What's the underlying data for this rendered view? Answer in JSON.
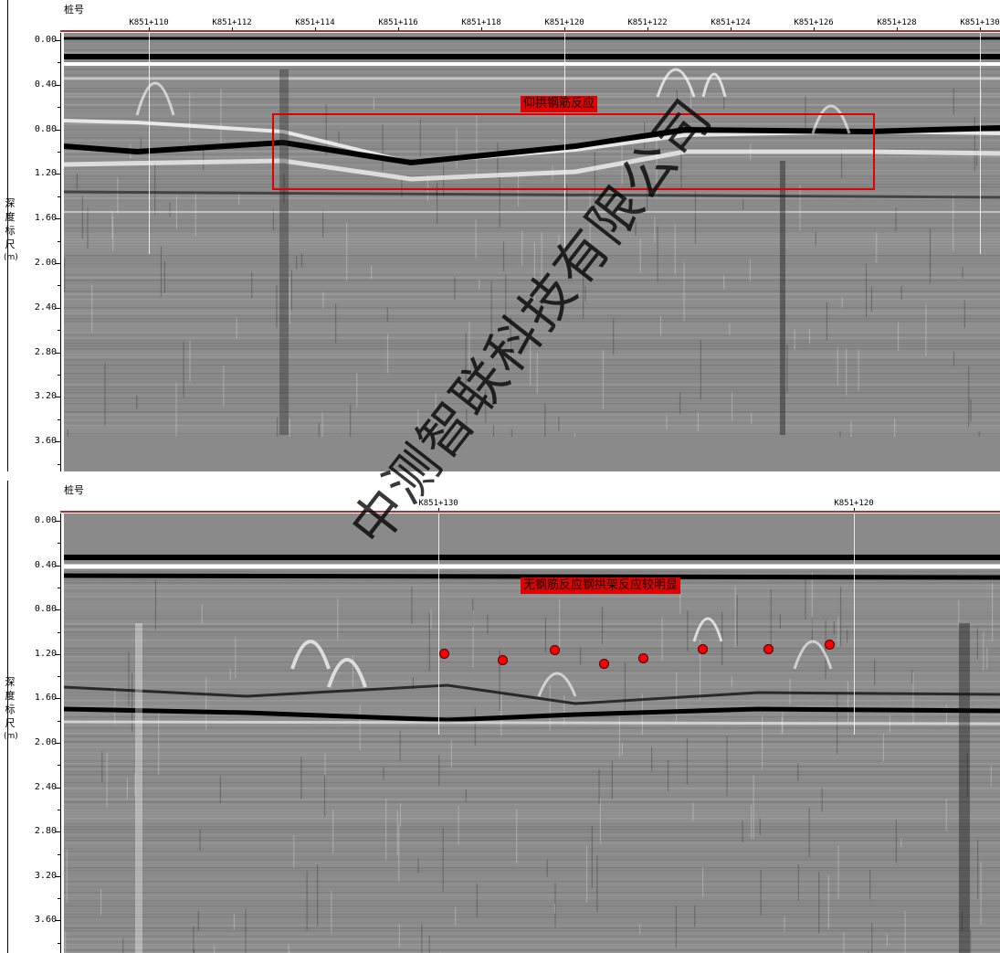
{
  "top_panel": {
    "header_title": "桩号",
    "axis_title_chars": [
      "深",
      "度",
      "标",
      "尺",
      "(m)"
    ],
    "depth_ticks": [
      "0.00",
      "0.40",
      "0.80",
      "1.20",
      "1.60",
      "2.00",
      "2.40",
      "2.80",
      "3.20",
      "3.60"
    ],
    "stations": [
      "K851+110",
      "K851+112",
      "K851+114",
      "K851+116",
      "K851+118",
      "K851+120",
      "K851+122",
      "K851+124",
      "K851+126",
      "K851+128",
      "K851+130"
    ],
    "annotation_label": "仰拱钢筋反应"
  },
  "bottom_panel": {
    "header_title": "桩号",
    "axis_title_chars": [
      "深",
      "度",
      "标",
      "尺",
      "(m)"
    ],
    "depth_ticks": [
      "0.00",
      "0.40",
      "0.80",
      "1.20",
      "1.60",
      "2.00",
      "2.40",
      "2.80",
      "3.20",
      "3.60"
    ],
    "stations": [
      "K851+130",
      "K851+120"
    ],
    "annotation_label": "无钢筋反应钢拱架反应较明显"
  },
  "watermark": "中测智联科技有限公司",
  "colors": {
    "annotation": "#e00000",
    "dot": "#ff0000",
    "background": "#808080"
  }
}
